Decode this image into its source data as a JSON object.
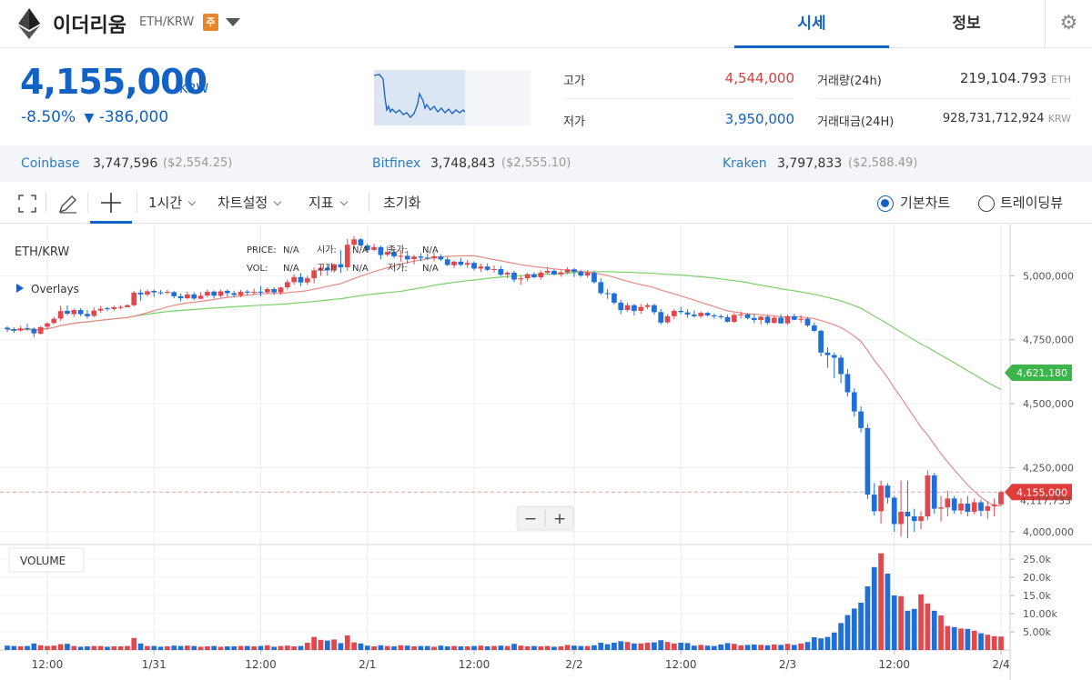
{
  "header": {
    "coin_name": "이더리움",
    "pair": "ETH/KRW",
    "badge": "주",
    "tabs": [
      {
        "label": "시세",
        "active": true
      },
      {
        "label": "정보",
        "active": false
      }
    ],
    "icons": {
      "logo": "ethereum-logo",
      "dropdown": "caret-down-icon",
      "settings": "gear-icon"
    }
  },
  "price": {
    "current": "4,155,000",
    "unit": "KRW",
    "change_pct": "-8.50%",
    "change_arrow": "▼",
    "change_abs": "-386,000",
    "color": "#1261c4"
  },
  "stats": {
    "high_label": "고가",
    "high_value": "4,544,000",
    "high_color": "#d63c3c",
    "low_label": "저가",
    "low_value": "3,950,000",
    "low_color": "#1261c4",
    "volume_label": "거래량(24h)",
    "volume_value": "219,104.793",
    "volume_unit": "ETH",
    "turnover_label": "거래대금(24H)",
    "turnover_value": "928,731,712,924",
    "turnover_unit": "KRW"
  },
  "exchanges": [
    {
      "name": "Coinbase",
      "price": "3,747,596",
      "usd": "($2,554.25)"
    },
    {
      "name": "Bitfinex",
      "price": "3,748,843",
      "usd": "($2,555.10)"
    },
    {
      "name": "Kraken",
      "price": "3,797,833",
      "usd": "($2,588.49)"
    }
  ],
  "toolbar": {
    "interval": "1시간",
    "chart_settings": "차트설정",
    "indicators": "지표",
    "reset": "초기화",
    "basic_chart": "기본차트",
    "tradingview": "트레이딩뷰",
    "icons": [
      "fullscreen-icon",
      "pencil-icon",
      "crosshair-icon"
    ]
  },
  "chart_legend": {
    "symbol": "ETH/KRW",
    "overlays": "Overlays",
    "price_label": "PRICE:",
    "price_val": "N/A",
    "open_label": "시가:",
    "open_val": "N/A",
    "low_label": "저가:",
    "low_val": "N/A",
    "vol_label": "VOL:",
    "vol_val": "N/A",
    "high_label": "고가:",
    "high_val": "N/A",
    "close_label": "종가:",
    "close_val": "N/A",
    "volume_title": "VOLUME",
    "zoom_out": "−",
    "zoom_in": "+"
  },
  "chart_data": {
    "type": "candlestick",
    "y_ticks": [
      "5,000,000",
      "4,750,000",
      "4,500,000",
      "4,250,000",
      "4,000,000"
    ],
    "y_tick_values": [
      5000000,
      4750000,
      4500000,
      4250000,
      4000000
    ],
    "ylim": [
      3950000,
      5200000
    ],
    "volume_ticks": [
      "25.0k",
      "20.0k",
      "15.0k",
      "10.00k",
      "5.00k"
    ],
    "volume_tick_values": [
      25000,
      20000,
      15000,
      10000,
      5000
    ],
    "volume_ylim": [
      0,
      28000
    ],
    "x_ticks": [
      "12:00",
      "1/31",
      "12:00",
      "2/1",
      "12:00",
      "2/2",
      "12:00",
      "2/3",
      "12:00",
      "2/4"
    ],
    "markers": [
      {
        "label": "4,621,180",
        "value": 4621180,
        "color": "#3cb54a"
      },
      {
        "label": "4,155,000",
        "value": 4155000,
        "color": "#e03c3c"
      }
    ],
    "sub_label": "4,117,733",
    "current_price_line": 4155000,
    "up_color": "#e0484e",
    "down_color": "#1f6fd6",
    "ma_short_color": "#e68a84",
    "ma_long_color": "#7ccf6d",
    "candles": [
      [
        4797000,
        4803000,
        4781000,
        4791000,
        1200
      ],
      [
        4791000,
        4799000,
        4776000,
        4785000,
        1100
      ],
      [
        4786000,
        4804000,
        4782000,
        4794000,
        1000
      ],
      [
        4795000,
        4812000,
        4785000,
        4793000,
        1100
      ],
      [
        4793000,
        4798000,
        4760000,
        4775000,
        1800
      ],
      [
        4774000,
        4804000,
        4770000,
        4799000,
        1300
      ],
      [
        4801000,
        4818000,
        4791000,
        4814000,
        1100
      ],
      [
        4815000,
        4840000,
        4811000,
        4832000,
        1200
      ],
      [
        4833000,
        4882000,
        4824000,
        4862000,
        1600
      ],
      [
        4863000,
        4884000,
        4846000,
        4852000,
        1700
      ],
      [
        4850000,
        4872000,
        4838000,
        4866000,
        1100
      ],
      [
        4866000,
        4873000,
        4842000,
        4850000,
        900
      ],
      [
        4851000,
        4866000,
        4833000,
        4842000,
        1000
      ],
      [
        4843000,
        4876000,
        4838000,
        4864000,
        1100
      ],
      [
        4864000,
        4882000,
        4856000,
        4871000,
        1100
      ],
      [
        4873000,
        4878000,
        4862000,
        4870000,
        900
      ],
      [
        4870000,
        4884000,
        4862000,
        4877000,
        1000
      ],
      [
        4878000,
        4885000,
        4869000,
        4878000,
        1000
      ],
      [
        4877000,
        4888000,
        4876000,
        4885000,
        1100
      ],
      [
        4885000,
        4940000,
        4880000,
        4934000,
        3300
      ],
      [
        4934000,
        4946000,
        4902000,
        4927000,
        1800
      ],
      [
        4927000,
        4946000,
        4920000,
        4939000,
        1100
      ],
      [
        4941000,
        4946000,
        4918000,
        4935000,
        1100
      ],
      [
        4935000,
        4944000,
        4926000,
        4934000,
        900
      ],
      [
        4935000,
        4945000,
        4928000,
        4937000,
        1000
      ],
      [
        4936000,
        4940000,
        4912000,
        4920000,
        1200
      ],
      [
        4920000,
        4930000,
        4901000,
        4912000,
        1100
      ],
      [
        4912000,
        4938000,
        4909000,
        4927000,
        1200
      ],
      [
        4927000,
        4936000,
        4904000,
        4911000,
        1100
      ],
      [
        4910000,
        4935000,
        4908000,
        4922000,
        900
      ],
      [
        4923000,
        4946000,
        4916000,
        4937000,
        1000
      ],
      [
        4938000,
        4943000,
        4911000,
        4922000,
        1100
      ],
      [
        4922000,
        4946000,
        4916000,
        4939000,
        900
      ],
      [
        4941000,
        4947000,
        4917000,
        4932000,
        1000
      ],
      [
        4932000,
        4942000,
        4916000,
        4925000,
        1000
      ],
      [
        4924000,
        4944000,
        4916000,
        4937000,
        1100
      ],
      [
        4938000,
        4945000,
        4924000,
        4934000,
        1100
      ],
      [
        4934000,
        4950000,
        4925000,
        4937000,
        1000
      ],
      [
        4938000,
        4960000,
        4920000,
        4934000,
        1100
      ],
      [
        4935000,
        4955000,
        4930000,
        4948000,
        1300
      ],
      [
        4948000,
        4955000,
        4925000,
        4935000,
        900
      ],
      [
        4935000,
        4957000,
        4926000,
        4954000,
        1100
      ],
      [
        4955000,
        4985000,
        4945000,
        4975000,
        1200
      ],
      [
        4975000,
        5005000,
        4965000,
        4995000,
        1000
      ],
      [
        4995000,
        5010000,
        4960000,
        4974000,
        1100
      ],
      [
        4974000,
        5000000,
        4964000,
        4990000,
        2000
      ],
      [
        4990000,
        5032000,
        4970000,
        5021000,
        3600
      ],
      [
        5021000,
        5045000,
        5000000,
        5031000,
        2800
      ],
      [
        5031000,
        5045000,
        5002000,
        5021000,
        2600
      ],
      [
        5021000,
        5048000,
        5012000,
        5045000,
        2900
      ],
      [
        5045000,
        5100000,
        5012000,
        5033000,
        1900
      ],
      [
        5033000,
        5144000,
        5019000,
        5121000,
        4000
      ],
      [
        5121000,
        5155000,
        5105000,
        5142000,
        2100
      ],
      [
        5142000,
        5147000,
        5115000,
        5118000,
        1800
      ],
      [
        5118000,
        5125000,
        5090000,
        5100000,
        1200
      ],
      [
        5101000,
        5125000,
        5096000,
        5112000,
        1000
      ],
      [
        5112000,
        5118000,
        5064000,
        5081000,
        1300
      ],
      [
        5082000,
        5116000,
        5075000,
        5093000,
        1100
      ],
      [
        5093000,
        5105000,
        5068000,
        5076000,
        1000
      ],
      [
        5076000,
        5100000,
        5055000,
        5078000,
        1300
      ],
      [
        5078000,
        5097000,
        5048000,
        5064000,
        1200
      ],
      [
        5065000,
        5082000,
        5044000,
        5075000,
        1000
      ],
      [
        5075000,
        5088000,
        5058000,
        5070000,
        1100
      ],
      [
        5071000,
        5086000,
        5062000,
        5067000,
        1100
      ],
      [
        5068000,
        5091000,
        5056000,
        5076000,
        900
      ],
      [
        5075000,
        5084000,
        5057000,
        5064000,
        1200
      ],
      [
        5064000,
        5072000,
        5038000,
        5042000,
        1000
      ],
      [
        5041000,
        5060000,
        5030000,
        5055000,
        1100
      ],
      [
        5055000,
        5070000,
        5038000,
        5043000,
        1000
      ],
      [
        5043000,
        5062000,
        5030000,
        5050000,
        1000
      ],
      [
        5050000,
        5056000,
        5020000,
        5028000,
        1100
      ],
      [
        5028000,
        5048000,
        5015000,
        5036000,
        1200
      ],
      [
        5036000,
        5048000,
        5018000,
        5023000,
        1000
      ],
      [
        5023000,
        5040000,
        5012000,
        5026000,
        1100
      ],
      [
        5026000,
        5038000,
        4999000,
        5004000,
        1200
      ],
      [
        5005000,
        5017000,
        4990000,
        5012000,
        1100
      ],
      [
        5012000,
        5020000,
        4975000,
        4985000,
        1700
      ],
      [
        4986000,
        5000000,
        4965000,
        4990000,
        1200
      ],
      [
        4990000,
        5011000,
        4978000,
        5006000,
        1000
      ],
      [
        5006000,
        5014000,
        4991000,
        4994000,
        1100
      ],
      [
        4994000,
        5020000,
        4985000,
        5012000,
        1000
      ],
      [
        5012000,
        5034000,
        5005000,
        5019000,
        1100
      ],
      [
        5019000,
        5025000,
        5001000,
        5005000,
        900
      ],
      [
        5005000,
        5021000,
        4996000,
        5013000,
        1000
      ],
      [
        5013000,
        5034000,
        5006000,
        5025000,
        1400
      ],
      [
        5025000,
        5030000,
        4995000,
        5015000,
        1200
      ],
      [
        5015000,
        5022000,
        4995000,
        5001000,
        1100
      ],
      [
        5001000,
        5022000,
        4992000,
        5012000,
        1100
      ],
      [
        5011000,
        5017000,
        4970000,
        4975000,
        1300
      ],
      [
        4975000,
        4990000,
        4925000,
        4932000,
        2000
      ],
      [
        4932000,
        4948000,
        4910000,
        4931000,
        1600
      ],
      [
        4931000,
        4935000,
        4888000,
        4895000,
        2000
      ],
      [
        4895000,
        4905000,
        4850000,
        4866000,
        2400
      ],
      [
        4866000,
        4895000,
        4860000,
        4885000,
        2200
      ],
      [
        4885000,
        4890000,
        4845000,
        4863000,
        1800
      ],
      [
        4863000,
        4890000,
        4852000,
        4878000,
        1800
      ],
      [
        4878000,
        4893000,
        4870000,
        4885000,
        2000
      ],
      [
        4885000,
        4890000,
        4848000,
        4858000,
        2100
      ],
      [
        4858000,
        4870000,
        4810000,
        4817000,
        2700
      ],
      [
        4818000,
        4850000,
        4812000,
        4842000,
        2200
      ],
      [
        4842000,
        4870000,
        4830000,
        4863000,
        1800
      ],
      [
        4863000,
        4878000,
        4850000,
        4858000,
        2000
      ],
      [
        4857000,
        4870000,
        4836000,
        4848000,
        1900
      ],
      [
        4848000,
        4865000,
        4837000,
        4842000,
        1200
      ],
      [
        4842000,
        4860000,
        4835000,
        4855000,
        1400
      ],
      [
        4855000,
        4858000,
        4840000,
        4845000,
        1200
      ],
      [
        4845000,
        4852000,
        4832000,
        4842000,
        1100
      ],
      [
        4842000,
        4849000,
        4830000,
        4838000,
        1500
      ],
      [
        4838000,
        4848000,
        4818000,
        4820000,
        1900
      ],
      [
        4820000,
        4855000,
        4815000,
        4847000,
        1700
      ],
      [
        4847000,
        4860000,
        4833000,
        4849000,
        1300
      ],
      [
        4849000,
        4854000,
        4830000,
        4835000,
        1400
      ],
      [
        4835000,
        4850000,
        4815000,
        4827000,
        1500
      ],
      [
        4827000,
        4844000,
        4810000,
        4840000,
        1400
      ],
      [
        4840000,
        4846000,
        4810000,
        4816000,
        1300
      ],
      [
        4816000,
        4842000,
        4812000,
        4836000,
        1500
      ],
      [
        4836000,
        4850000,
        4812000,
        4814000,
        1400
      ],
      [
        4814000,
        4848000,
        4808000,
        4842000,
        1700
      ],
      [
        4842000,
        4852000,
        4826000,
        4828000,
        1400
      ],
      [
        4828000,
        4846000,
        4815000,
        4832000,
        1800
      ],
      [
        4832000,
        4838000,
        4800000,
        4806000,
        2200
      ],
      [
        4806000,
        4818000,
        4780000,
        4785000,
        3500
      ],
      [
        4785000,
        4790000,
        4685000,
        4700000,
        3200
      ],
      [
        4700000,
        4720000,
        4640000,
        4690000,
        3600
      ],
      [
        4690000,
        4700000,
        4600000,
        4680000,
        4800
      ],
      [
        4680000,
        4690000,
        4580000,
        4616000,
        7400
      ],
      [
        4616000,
        4636000,
        4528000,
        4545000,
        9600
      ],
      [
        4545000,
        4560000,
        4450000,
        4470000,
        11400
      ],
      [
        4470000,
        4490000,
        4388000,
        4405000,
        13000
      ],
      [
        4405000,
        4420000,
        4128000,
        4145000,
        17500
      ],
      [
        4145000,
        4190000,
        4063000,
        4080000,
        22800
      ],
      [
        4080000,
        4200000,
        4032000,
        4180000,
        26600
      ],
      [
        4180000,
        4190000,
        4110000,
        4133000,
        21000
      ],
      [
        4133000,
        4140000,
        4000000,
        4030000,
        15000
      ],
      [
        4030000,
        4200000,
        3980000,
        4078000,
        14800
      ],
      [
        4078000,
        4200000,
        3974000,
        4060000,
        10800
      ],
      [
        4060000,
        4090000,
        4000000,
        4042000,
        11300
      ],
      [
        4042000,
        4080000,
        4010000,
        4060000,
        15300
      ],
      [
        4060000,
        4240000,
        4045000,
        4220000,
        12800
      ],
      [
        4220000,
        4230000,
        4070000,
        4090000,
        10800
      ],
      [
        4090000,
        4140000,
        4040000,
        4095000,
        9500
      ],
      [
        4095000,
        4160000,
        4060000,
        4130000,
        6600
      ],
      [
        4130000,
        4140000,
        4070000,
        4083000,
        6300
      ],
      [
        4083000,
        4130000,
        4068000,
        4110000,
        5900
      ],
      [
        4110000,
        4140000,
        4060000,
        4078000,
        5800
      ],
      [
        4078000,
        4130000,
        4068000,
        4115000,
        5300
      ],
      [
        4115000,
        4125000,
        4060000,
        4082000,
        4600
      ],
      [
        4082000,
        4120000,
        4050000,
        4100000,
        4200
      ],
      [
        4100000,
        4130000,
        4060000,
        4107000,
        3800
      ],
      [
        4107000,
        4160000,
        4100000,
        4155000,
        3700
      ]
    ]
  }
}
